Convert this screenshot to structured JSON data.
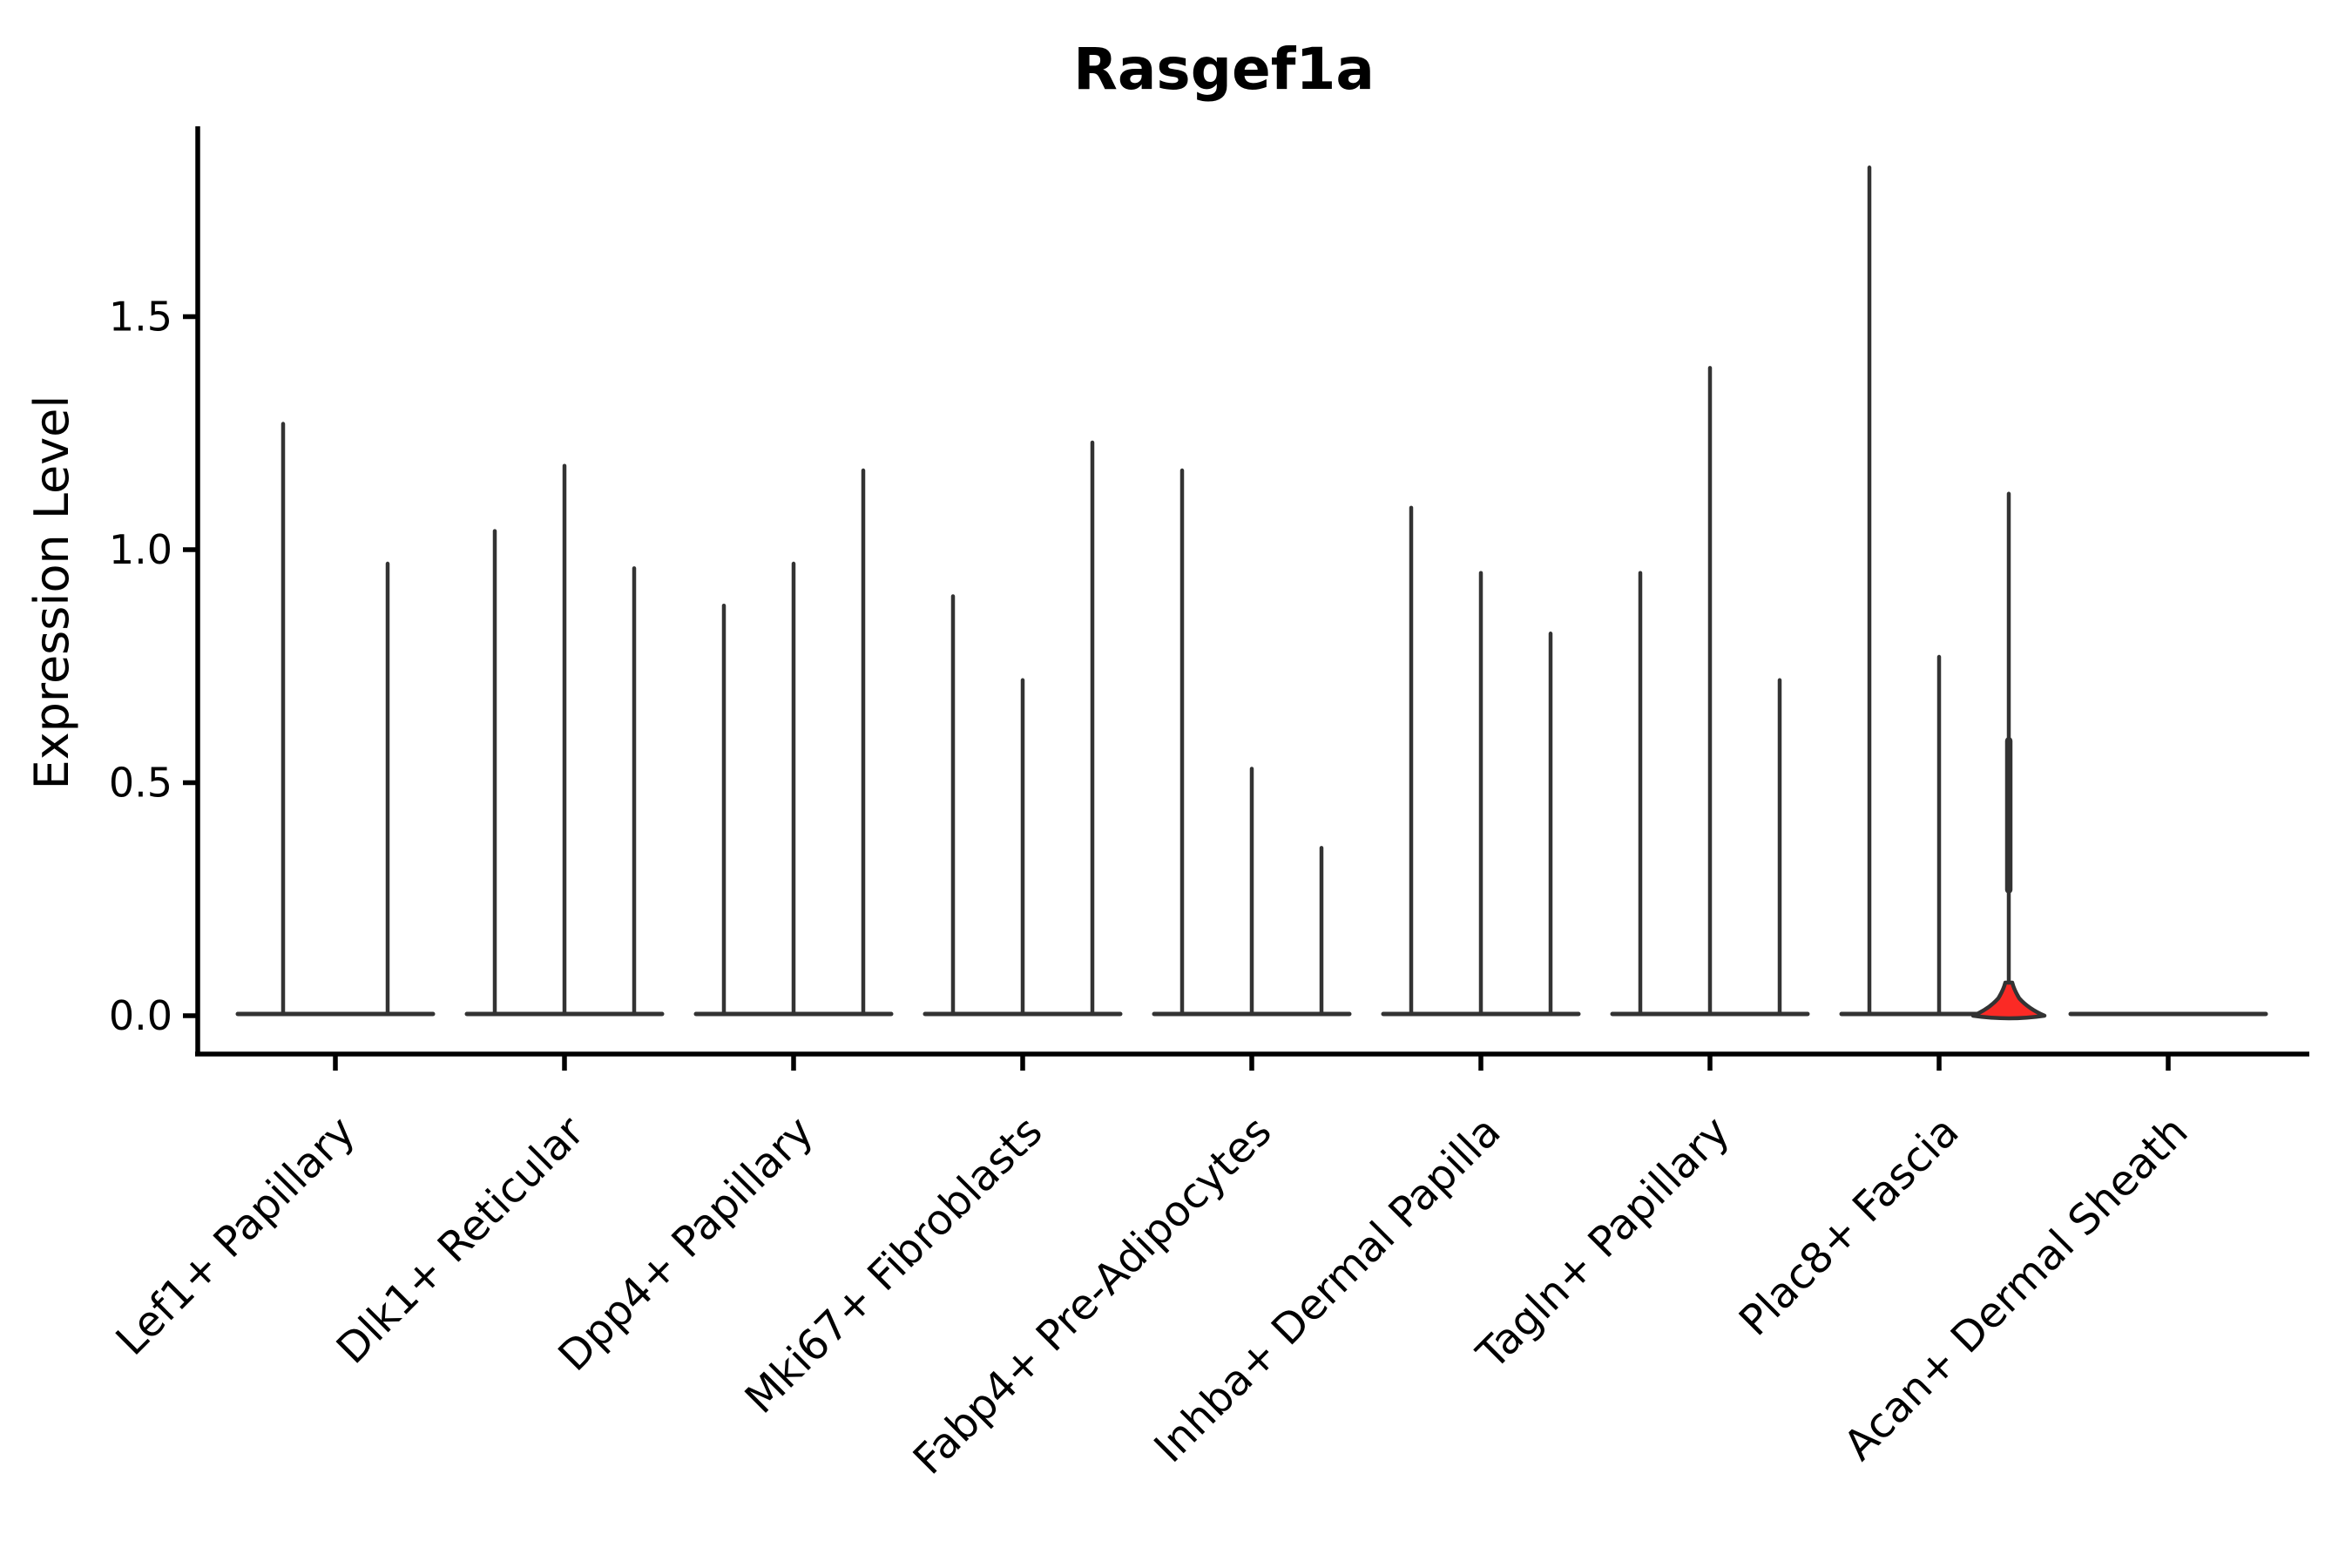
{
  "title": "Rasgef1a",
  "y_axis": {
    "label": "Expression Level",
    "tick_labels": [
      "0.0",
      "0.5",
      "1.0",
      "1.5"
    ],
    "tick_values": [
      0.0,
      0.5,
      1.0,
      1.5
    ]
  },
  "colors": {
    "background": "#ffffff",
    "axis": "#000000",
    "violin_outline": "#333333",
    "highlight_fill": "#fb2a25",
    "text": "#000000"
  },
  "chart_data": {
    "type": "violin",
    "title": "Rasgef1a",
    "xlabel": "",
    "ylabel": "Expression Level",
    "yticks": [
      0.0,
      0.5,
      1.0,
      1.5
    ],
    "ylim": [
      -0.08,
      1.91
    ],
    "grid": false,
    "legend": null,
    "description": "Stacked-at-zero violin plot: every violin is flat at expression 0 with a thin spike up to its maximum; the third violin of Plac8+ Fascia is highlighted with a red filled base flare.",
    "categories": [
      {
        "label": "Lef1+ Papillary",
        "violins": [
          {
            "max": 1.27
          },
          {
            "max": 0.97
          }
        ]
      },
      {
        "label": "Dlk1+ Reticular",
        "violins": [
          {
            "max": 1.04
          },
          {
            "max": 1.18
          },
          {
            "max": 0.96
          }
        ]
      },
      {
        "label": "Dpp4+ Papillary",
        "violins": [
          {
            "max": 0.88
          },
          {
            "max": 0.97
          },
          {
            "max": 1.17
          }
        ]
      },
      {
        "label": "Mki67+ Fibroblasts",
        "violins": [
          {
            "max": 0.9
          },
          {
            "max": 0.72
          },
          {
            "max": 1.23
          }
        ]
      },
      {
        "label": "Fabp4+ Pre-Adipocytes",
        "violins": [
          {
            "max": 1.17
          },
          {
            "max": 0.53
          },
          {
            "max": 0.36
          }
        ]
      },
      {
        "label": "Inhba+ Dermal Papilla",
        "violins": [
          {
            "max": 1.09
          },
          {
            "max": 0.95
          },
          {
            "max": 0.82
          }
        ]
      },
      {
        "label": "Tagln+ Papillary",
        "violins": [
          {
            "max": 0.95
          },
          {
            "max": 1.39
          },
          {
            "max": 0.72
          }
        ]
      },
      {
        "label": "Plac8+ Fascia",
        "violins": [
          {
            "max": 1.82
          },
          {
            "max": 0.77
          },
          {
            "max": 1.12,
            "highlight": true,
            "bulge": [
              0.27,
              0.59
            ]
          }
        ]
      },
      {
        "label": "Acan+ Dermal Sheath",
        "violins": [
          {
            "max": 0.0
          }
        ]
      }
    ]
  }
}
